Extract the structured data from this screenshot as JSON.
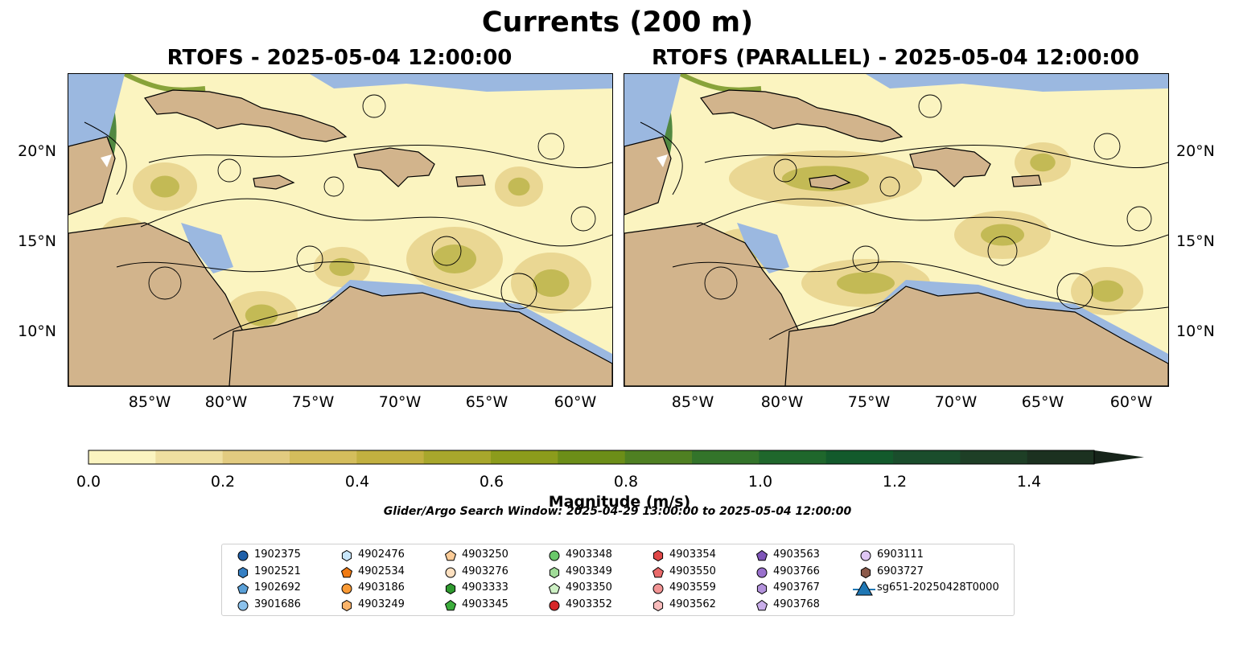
{
  "figure": {
    "suptitle": "Currents (200 m)",
    "panels": [
      {
        "title": "RTOFS - 2025-05-04 12:00:00"
      },
      {
        "title": "RTOFS (PARALLEL) - 2025-05-04 12:00:00"
      }
    ],
    "x_ticks": [
      "85°W",
      "80°W",
      "75°W",
      "70°W",
      "65°W",
      "60°W"
    ],
    "y_ticks": [
      "20°N",
      "15°N",
      "10°N"
    ],
    "colors": {
      "land": "#d2b48c",
      "shallow_water": "#9bb8e0",
      "low_speed": "#f7edb8",
      "high_speed": "#1b3a1b"
    }
  },
  "colorbar": {
    "label": "Magnitude (m/s)",
    "ticks": [
      "0.0",
      "0.2",
      "0.4",
      "0.6",
      "0.8",
      "1.0",
      "1.2",
      "1.4"
    ],
    "range": [
      0,
      1.5
    ],
    "colors": [
      "#fbf4c0",
      "#efdfa0",
      "#e2cb80",
      "#d4bd5c",
      "#c2b040",
      "#a8a72c",
      "#8c9c1c",
      "#6c8e18",
      "#4f8022",
      "#33742a",
      "#1f672c",
      "#135a2c",
      "#1a4d2c",
      "#1e3f26",
      "#1c3120",
      "#17241a"
    ]
  },
  "search_window": "Glider/Argo Search Window: 2025-04-29 13:00:00 to 2025-05-04 12:00:00",
  "legend": {
    "columns": [
      [
        {
          "label": "1902375",
          "marker": "circle",
          "color": "#1f5fa8"
        },
        {
          "label": "1902521",
          "marker": "hexagon",
          "color": "#3680c4"
        },
        {
          "label": "1902692",
          "marker": "pentagon",
          "color": "#5aa0d8"
        },
        {
          "label": "3901686",
          "marker": "circle",
          "color": "#8cc2ec"
        }
      ],
      [
        {
          "label": "4902476",
          "marker": "hexagon",
          "color": "#c8e6fa"
        },
        {
          "label": "4902534",
          "marker": "pentagon",
          "color": "#f07a12"
        },
        {
          "label": "4903186",
          "marker": "circle",
          "color": "#f99a35"
        },
        {
          "label": "4903249",
          "marker": "hexagon",
          "color": "#fbb46a"
        }
      ],
      [
        {
          "label": "4903250",
          "marker": "pentagon",
          "color": "#fccc98"
        },
        {
          "label": "4903276",
          "marker": "circle",
          "color": "#fde0c0"
        },
        {
          "label": "4903333",
          "marker": "hexagon",
          "color": "#2f9a2f"
        },
        {
          "label": "4903345",
          "marker": "pentagon",
          "color": "#3cad3c"
        }
      ],
      [
        {
          "label": "4903348",
          "marker": "circle",
          "color": "#6ac86a"
        },
        {
          "label": "4903349",
          "marker": "hexagon",
          "color": "#a0dc98"
        },
        {
          "label": "4903350",
          "marker": "pentagon",
          "color": "#cdf0c4"
        },
        {
          "label": "4903352",
          "marker": "circle",
          "color": "#d62728"
        }
      ],
      [
        {
          "label": "4903354",
          "marker": "hexagon",
          "color": "#e04848"
        },
        {
          "label": "4903550",
          "marker": "pentagon",
          "color": "#ea6a6a"
        },
        {
          "label": "4903559",
          "marker": "circle",
          "color": "#f29494"
        },
        {
          "label": "4903562",
          "marker": "hexagon",
          "color": "#f8bcbc"
        }
      ],
      [
        {
          "label": "4903563",
          "marker": "pentagon",
          "color": "#7e55b8"
        },
        {
          "label": "4903766",
          "marker": "circle",
          "color": "#9970cc"
        },
        {
          "label": "4903767",
          "marker": "hexagon",
          "color": "#b392dc"
        },
        {
          "label": "4903768",
          "marker": "pentagon",
          "color": "#c9aeea"
        }
      ],
      [
        {
          "label": "6903111",
          "marker": "circle",
          "color": "#dfc6f4"
        },
        {
          "label": "6903727",
          "marker": "hexagon",
          "color": "#8c5a4a"
        },
        {
          "label": "sg651-20250428T0000",
          "marker": "triangle-line",
          "color": "#1f77b4"
        }
      ]
    ]
  }
}
